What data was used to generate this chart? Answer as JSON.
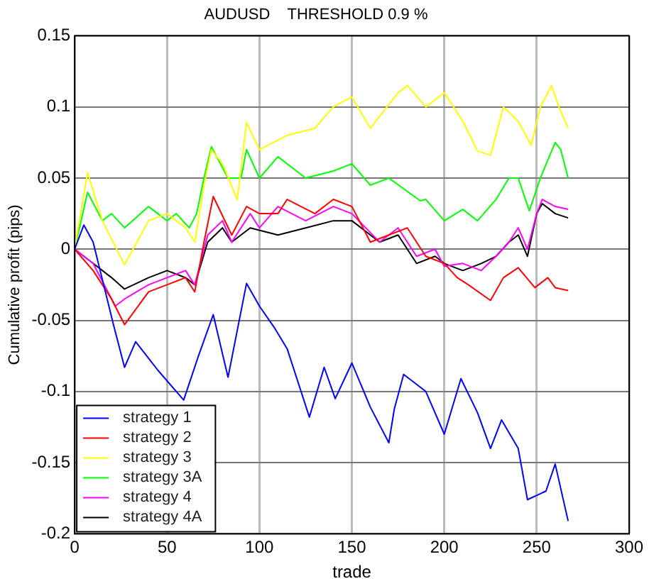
{
  "chart_data": {
    "type": "line",
    "title": "AUDUSD    THRESHOLD 0.9 %",
    "xlabel": "trade",
    "ylabel": "Cumulative profit (pips)",
    "xlim": [
      0,
      300
    ],
    "xticks": [
      0,
      50,
      100,
      150,
      200,
      250,
      300
    ],
    "ylim": [
      -0.2,
      0.15
    ],
    "yticks": [
      -0.2,
      -0.15,
      -0.1,
      -0.05,
      0,
      0.05,
      0.1,
      0.15
    ],
    "grid": true,
    "legend": "bottom left",
    "marker": "none",
    "line_style": "solid",
    "series": [
      {
        "name": "strategy 1",
        "color": "#0000ff",
        "x": [
          0,
          5,
          10,
          21,
          27,
          33,
          45,
          59,
          67,
          75,
          83,
          93,
          100,
          108,
          115,
          127,
          135,
          141,
          150,
          160,
          170,
          173,
          178,
          190,
          200,
          209,
          218,
          225,
          231,
          240,
          245,
          255,
          260,
          267
        ],
        "values": [
          0,
          0.017,
          0.005,
          -0.053,
          -0.083,
          -0.065,
          -0.085,
          -0.106,
          -0.075,
          -0.046,
          -0.09,
          -0.024,
          -0.04,
          -0.055,
          -0.07,
          -0.118,
          -0.083,
          -0.105,
          -0.08,
          -0.111,
          -0.136,
          -0.112,
          -0.088,
          -0.1,
          -0.13,
          -0.091,
          -0.115,
          -0.14,
          -0.12,
          -0.14,
          -0.176,
          -0.17,
          -0.151,
          -0.191
        ]
      },
      {
        "name": "strategy 2",
        "color": "#ff0000",
        "x": [
          0,
          10,
          20,
          27,
          40,
          50,
          60,
          65,
          70,
          75,
          85,
          93,
          100,
          110,
          115,
          130,
          140,
          150,
          160,
          170,
          180,
          190,
          200,
          207,
          213,
          225,
          232,
          240,
          249,
          256,
          260,
          267
        ],
        "values": [
          0,
          -0.015,
          -0.035,
          -0.053,
          -0.03,
          -0.025,
          -0.02,
          -0.03,
          0.005,
          0.037,
          0.01,
          0.03,
          0.025,
          0.025,
          0.035,
          0.025,
          0.035,
          0.03,
          0.005,
          0.01,
          0.015,
          -0.005,
          -0.01,
          -0.02,
          -0.025,
          -0.036,
          -0.02,
          -0.013,
          -0.027,
          -0.02,
          -0.027,
          -0.029
        ]
      },
      {
        "name": "strategy 3",
        "color": "#ffff00",
        "x": [
          0,
          7,
          15,
          27,
          40,
          50,
          60,
          65,
          70,
          74,
          80,
          88,
          93,
          100,
          115,
          130,
          140,
          150,
          160,
          175,
          180,
          190,
          200,
          210,
          218,
          225,
          232,
          240,
          247,
          252,
          258,
          262,
          267
        ],
        "values": [
          0,
          0.054,
          0.02,
          -0.011,
          0.02,
          0.025,
          0.015,
          0.005,
          0.045,
          0.07,
          0.06,
          0.035,
          0.089,
          0.07,
          0.08,
          0.085,
          0.1,
          0.107,
          0.085,
          0.11,
          0.115,
          0.1,
          0.11,
          0.09,
          0.069,
          0.066,
          0.1,
          0.09,
          0.073,
          0.1,
          0.115,
          0.1,
          0.085
        ]
      },
      {
        "name": "strategy 3A",
        "color": "#00ff00",
        "x": [
          0,
          7,
          15,
          20,
          27,
          40,
          50,
          55,
          62,
          66,
          70,
          74,
          83,
          90,
          93,
          100,
          110,
          125,
          140,
          150,
          160,
          170,
          187,
          190,
          200,
          210,
          218,
          228,
          235,
          240,
          246,
          252,
          260,
          263,
          267
        ],
        "values": [
          0,
          0.04,
          0.02,
          0.025,
          0.015,
          0.03,
          0.02,
          0.025,
          0.015,
          0.025,
          0.05,
          0.072,
          0.05,
          0.05,
          0.07,
          0.05,
          0.065,
          0.05,
          0.055,
          0.06,
          0.045,
          0.05,
          0.034,
          0.035,
          0.02,
          0.028,
          0.02,
          0.035,
          0.05,
          0.05,
          0.027,
          0.05,
          0.075,
          0.07,
          0.05
        ]
      },
      {
        "name": "strategy 4",
        "color": "#ff00ff",
        "x": [
          0,
          10,
          22,
          27,
          40,
          50,
          60,
          65,
          72,
          80,
          85,
          95,
          100,
          110,
          125,
          140,
          150,
          165,
          175,
          185,
          195,
          200,
          210,
          220,
          228,
          235,
          240,
          245,
          250,
          253,
          260,
          267
        ],
        "values": [
          0,
          -0.01,
          -0.04,
          -0.035,
          -0.025,
          -0.02,
          -0.015,
          -0.025,
          0.01,
          0.02,
          0.005,
          0.025,
          0.015,
          0.03,
          0.02,
          0.03,
          0.025,
          0.005,
          0.015,
          -0.005,
          0,
          -0.012,
          -0.01,
          -0.015,
          -0.005,
          0.005,
          0.015,
          0,
          0.025,
          0.035,
          0.03,
          0.028
        ]
      },
      {
        "name": "strategy 4A",
        "color": "#000000",
        "x": [
          0,
          10,
          20,
          27,
          40,
          50,
          60,
          65,
          72,
          80,
          85,
          95,
          110,
          125,
          140,
          150,
          165,
          175,
          185,
          195,
          200,
          210,
          220,
          228,
          235,
          240,
          245,
          250,
          253,
          260,
          267
        ],
        "values": [
          0,
          -0.01,
          -0.02,
          -0.028,
          -0.02,
          -0.015,
          -0.02,
          -0.025,
          0.005,
          0.015,
          0.005,
          0.015,
          0.01,
          0.015,
          0.02,
          0.02,
          0.005,
          0.01,
          -0.01,
          -0.005,
          -0.01,
          -0.015,
          -0.01,
          -0.005,
          0.005,
          0.01,
          -0.005,
          0.025,
          0.032,
          0.025,
          0.022
        ]
      }
    ]
  }
}
